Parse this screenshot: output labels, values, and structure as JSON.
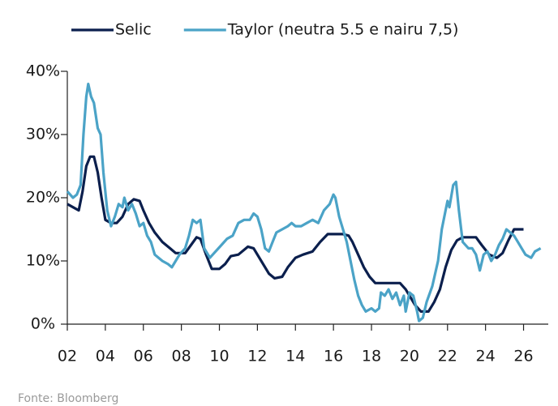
{
  "chart_data": {
    "type": "line",
    "source": "Fonte: Bloomberg",
    "xlim": [
      2002,
      2027.3
    ],
    "xticks": [
      {
        "value": 2002,
        "label": "02"
      },
      {
        "value": 2004,
        "label": "04"
      },
      {
        "value": 2006,
        "label": "06"
      },
      {
        "value": 2008,
        "label": "08"
      },
      {
        "value": 2010,
        "label": "10"
      },
      {
        "value": 2012,
        "label": "12"
      },
      {
        "value": 2014,
        "label": "14"
      },
      {
        "value": 2016,
        "label": "16"
      },
      {
        "value": 2018,
        "label": "18"
      },
      {
        "value": 2020,
        "label": "20"
      },
      {
        "value": 2022,
        "label": "22"
      },
      {
        "value": 2024,
        "label": "24"
      },
      {
        "value": 2026,
        "label": "26"
      }
    ],
    "ylim": [
      0,
      40
    ],
    "yticks": [
      {
        "value": 0,
        "label": "0%"
      },
      {
        "value": 10,
        "label": "10%"
      },
      {
        "value": 20,
        "label": "20%"
      },
      {
        "value": 30,
        "label": "30%"
      },
      {
        "value": 40,
        "label": "40%"
      }
    ],
    "grid": false,
    "legend": "top",
    "series": [
      {
        "name": "Selic",
        "color": "#0b1f4d",
        "x": [
          2002.0,
          2002.3,
          2002.6,
          2002.8,
          2003.0,
          2003.2,
          2003.4,
          2003.6,
          2003.8,
          2004.0,
          2004.3,
          2004.6,
          2004.9,
          2005.2,
          2005.5,
          2005.8,
          2006.0,
          2006.3,
          2006.6,
          2007.0,
          2007.4,
          2007.7,
          2008.2,
          2008.5,
          2008.8,
          2009.0,
          2009.3,
          2009.6,
          2010.0,
          2010.3,
          2010.6,
          2011.0,
          2011.5,
          2011.8,
          2012.2,
          2012.6,
          2012.9,
          2013.3,
          2013.6,
          2014.0,
          2014.4,
          2014.9,
          2015.3,
          2015.7,
          2016.5,
          2016.8,
          2017.0,
          2017.3,
          2017.6,
          2017.9,
          2018.2,
          2019.5,
          2019.8,
          2020.0,
          2020.3,
          2020.6,
          2021.0,
          2021.3,
          2021.6,
          2021.9,
          2022.2,
          2022.5,
          2022.8,
          2023.5,
          2023.8,
          2024.2,
          2024.6,
          2024.9,
          2025.2,
          2025.5,
          2026.0
        ],
        "values": [
          19,
          18.5,
          18,
          21,
          25,
          26.5,
          26.5,
          24,
          20,
          16.5,
          16,
          16,
          17,
          19,
          19.75,
          19.5,
          18,
          16,
          14.5,
          13,
          12,
          11.25,
          11.25,
          12.5,
          13.75,
          13.5,
          11,
          8.75,
          8.75,
          9.5,
          10.75,
          11,
          12.25,
          12,
          10,
          8,
          7.25,
          7.5,
          9,
          10.5,
          11,
          11.5,
          13,
          14.25,
          14.25,
          14,
          13,
          11,
          9,
          7.5,
          6.5,
          6.5,
          5.5,
          4.5,
          3,
          2,
          2,
          3.5,
          5.5,
          9,
          11.75,
          13.25,
          13.75,
          13.75,
          12.5,
          11,
          10.5,
          11.25,
          13.25,
          15,
          15
        ]
      },
      {
        "name": "Taylor (neutra 5.5 e nairu 7,5)",
        "color": "#4ba3c7",
        "x": [
          2002.0,
          2002.3,
          2002.5,
          2002.7,
          2002.85,
          2003.0,
          2003.1,
          2003.25,
          2003.4,
          2003.6,
          2003.75,
          2003.9,
          2004.1,
          2004.3,
          2004.5,
          2004.7,
          2004.9,
          2005.0,
          2005.2,
          2005.4,
          2005.6,
          2005.8,
          2006.0,
          2006.2,
          2006.4,
          2006.6,
          2006.8,
          2007.0,
          2007.3,
          2007.5,
          2007.7,
          2007.9,
          2008.2,
          2008.4,
          2008.6,
          2008.8,
          2009.0,
          2009.2,
          2009.5,
          2009.8,
          2010.1,
          2010.4,
          2010.7,
          2011.0,
          2011.3,
          2011.6,
          2011.8,
          2012.0,
          2012.2,
          2012.4,
          2012.6,
          2012.8,
          2013.0,
          2013.3,
          2013.6,
          2013.8,
          2014.0,
          2014.3,
          2014.6,
          2014.9,
          2015.2,
          2015.5,
          2015.8,
          2016.0,
          2016.1,
          2016.3,
          2016.5,
          2016.7,
          2016.9,
          2017.1,
          2017.3,
          2017.5,
          2017.7,
          2018.0,
          2018.2,
          2018.4,
          2018.5,
          2018.7,
          2018.9,
          2019.1,
          2019.3,
          2019.5,
          2019.7,
          2019.8,
          2020.0,
          2020.2,
          2020.4,
          2020.5,
          2020.7,
          2020.9,
          2021.2,
          2021.5,
          2021.7,
          2021.9,
          2022.0,
          2022.1,
          2022.3,
          2022.45,
          2022.6,
          2022.8,
          2023.1,
          2023.3,
          2023.5,
          2023.7,
          2023.9,
          2024.1,
          2024.3,
          2024.5,
          2024.7,
          2024.9,
          2025.1,
          2025.3,
          2025.5,
          2025.7,
          2025.9,
          2026.1,
          2026.4,
          2026.6,
          2026.9
        ],
        "values": [
          21,
          20,
          20.5,
          22,
          30,
          36,
          38,
          36,
          35,
          31,
          30,
          24,
          18,
          15.5,
          17,
          19,
          18.5,
          20,
          18,
          19,
          17.5,
          15.5,
          16,
          14,
          13,
          11,
          10.5,
          10,
          9.5,
          9,
          10,
          11,
          12,
          14,
          16.5,
          16,
          16.5,
          12,
          10.5,
          11.5,
          12.5,
          13.5,
          14,
          16,
          16.5,
          16.5,
          17.5,
          17,
          15,
          12,
          11.5,
          13,
          14.5,
          15,
          15.5,
          16,
          15.5,
          15.5,
          16,
          16.5,
          16,
          18,
          19,
          20.5,
          20,
          17,
          15,
          13,
          10,
          7,
          4.5,
          3,
          2,
          2.5,
          2,
          2.5,
          5,
          4.5,
          5.5,
          4,
          5,
          3,
          4.5,
          2,
          5,
          4.5,
          2,
          0.5,
          1,
          3.5,
          6,
          10,
          15,
          18,
          19.5,
          18.5,
          22,
          22.5,
          18,
          13,
          12,
          12,
          11,
          8.5,
          11,
          11.5,
          10,
          11,
          12.5,
          13.5,
          15,
          14.5,
          14,
          13,
          12,
          11,
          10.5,
          11.5,
          12
        ]
      }
    ]
  }
}
